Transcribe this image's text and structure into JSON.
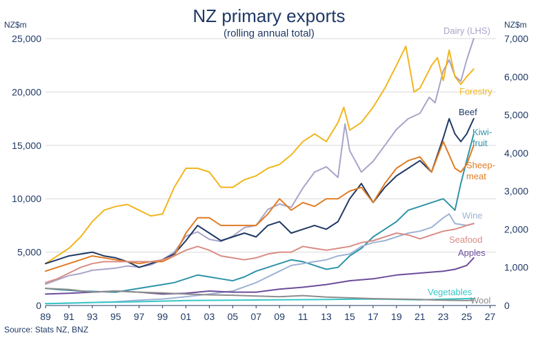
{
  "chart_data": {
    "type": "line",
    "title": "NZ primary exports",
    "subtitle": "(rolling annual total)",
    "y_left_unit": "NZ$m",
    "y_right_unit": "NZ$m",
    "source": "Source: Stats NZ, BNZ",
    "xlim": [
      1989,
      2027.5
    ],
    "ylim_left": [
      0,
      25000
    ],
    "ylim_right": [
      0,
      7000
    ],
    "grid": true,
    "x_ticks": [
      "89",
      "91",
      "93",
      "95",
      "97",
      "99",
      "01",
      "03",
      "05",
      "07",
      "09",
      "11",
      "13",
      "15",
      "17",
      "19",
      "21",
      "23",
      "25",
      "27"
    ],
    "y_left_ticks": [
      "0",
      "5,000",
      "10,000",
      "15,000",
      "20,000",
      "25,000"
    ],
    "y_right_ticks": [
      "0",
      "1,000",
      "2,000",
      "3,000",
      "4,000",
      "5,000",
      "6,000",
      "7,000"
    ],
    "series": [
      {
        "name": "Dairy (LHS)",
        "label": "Dairy (LHS)",
        "axis": "left",
        "color": "#a9a3c9",
        "x": [
          1989,
          1990,
          1991,
          1992,
          1993,
          1994,
          1995,
          1996,
          1997,
          1998,
          1999,
          2000,
          2001,
          2002,
          2003,
          2004,
          2005,
          2006,
          2007,
          2008,
          2009,
          2010,
          2011,
          2012,
          2013,
          2014,
          2014.6,
          2015,
          2016,
          2017,
          2018,
          2019,
          2020,
          2021,
          2021.8,
          2022.3,
          2023,
          2023.5,
          2024,
          2024.5,
          2025,
          2025.6
        ],
        "y": [
          2000,
          2400,
          2800,
          3000,
          3300,
          3400,
          3500,
          3700,
          3600,
          3800,
          4300,
          5000,
          6500,
          6900,
          6200,
          6000,
          6500,
          7300,
          7500,
          9000,
          9500,
          9200,
          11000,
          12500,
          13000,
          12000,
          17000,
          14500,
          12500,
          13500,
          15000,
          16500,
          17500,
          18000,
          19500,
          19000,
          22000,
          23000,
          21500,
          21000,
          23000,
          25000
        ]
      },
      {
        "name": "Forestry",
        "label": "Forestry",
        "axis": "right",
        "color": "#f2b51c",
        "x": [
          1989,
          1990,
          1991,
          1992,
          1993,
          1994,
          1995,
          1996,
          1997,
          1998,
          1999,
          2000,
          2001,
          2002,
          2003,
          2004,
          2005,
          2006,
          2007,
          2008,
          2009,
          2010,
          2011,
          2012,
          2013,
          2014,
          2014.5,
          2015,
          2016,
          2017,
          2018,
          2019,
          2019.8,
          2020.5,
          2021,
          2022,
          2022.5,
          2023,
          2023.5,
          2024,
          2024.5,
          2025,
          2025.6
        ],
        "y": [
          1100,
          1300,
          1500,
          1800,
          2200,
          2500,
          2600,
          2650,
          2500,
          2350,
          2400,
          3100,
          3600,
          3600,
          3500,
          3100,
          3100,
          3300,
          3400,
          3600,
          3700,
          3950,
          4300,
          4500,
          4300,
          4800,
          5200,
          4600,
          4800,
          5200,
          5700,
          6300,
          6800,
          5600,
          5700,
          6300,
          6500,
          5900,
          6700,
          6000,
          5800,
          6000,
          6200
        ]
      },
      {
        "name": "Beef",
        "label": "Beef",
        "axis": "right",
        "color": "#1f3864",
        "x": [
          1989,
          1990,
          1991,
          1992,
          1993,
          1994,
          1995,
          1996,
          1997,
          1998,
          1999,
          2000,
          2001,
          2002,
          2003,
          2004,
          2005,
          2006,
          2007,
          2008,
          2009,
          2010,
          2011,
          2012,
          2013,
          2014,
          2015,
          2016,
          2017,
          2018,
          2019,
          2020,
          2021,
          2022,
          2023,
          2023.5,
          2024,
          2024.5,
          2025,
          2025.6
        ],
        "y": [
          1100,
          1200,
          1300,
          1350,
          1400,
          1300,
          1250,
          1150,
          1000,
          1100,
          1200,
          1350,
          1700,
          2100,
          1900,
          1700,
          1800,
          1900,
          1800,
          2100,
          2200,
          1900,
          2000,
          2100,
          2000,
          2200,
          2800,
          3200,
          2700,
          3100,
          3400,
          3600,
          3800,
          3500,
          4400,
          4900,
          4500,
          4300,
          4500,
          4900
        ]
      },
      {
        "name": "Kiwifruit",
        "label": "Kiwi-fruit",
        "axis": "right",
        "color": "#2e93a8",
        "x": [
          1989,
          1990,
          1991,
          1992,
          1993,
          1994,
          1995,
          1996,
          1997,
          1998,
          1999,
          2000,
          2001,
          2002,
          2003,
          2004,
          2005,
          2006,
          2007,
          2008,
          2009,
          2010,
          2011,
          2012,
          2013,
          2014,
          2015,
          2016,
          2017,
          2018,
          2019,
          2020,
          2021,
          2022,
          2023,
          2024,
          2024.5,
          2025,
          2025.6
        ],
        "y": [
          450,
          420,
          400,
          380,
          370,
          360,
          350,
          400,
          450,
          500,
          550,
          600,
          700,
          800,
          750,
          700,
          650,
          750,
          900,
          1000,
          1100,
          1200,
          1150,
          1050,
          950,
          1000,
          1300,
          1500,
          1800,
          2000,
          2200,
          2500,
          2600,
          2700,
          2800,
          2500,
          3200,
          3800,
          4500
        ]
      },
      {
        "name": "Sheepmeat",
        "label": "Sheep-meat",
        "axis": "right",
        "color": "#e07b22",
        "x": [
          1989,
          1990,
          1991,
          1992,
          1993,
          1994,
          1995,
          1996,
          1997,
          1998,
          1999,
          2000,
          2001,
          2002,
          2003,
          2004,
          2005,
          2006,
          2007,
          2008,
          2009,
          2010,
          2011,
          2012,
          2013,
          2014,
          2015,
          2016,
          2017,
          2018,
          2019,
          2020,
          2021,
          2022,
          2023,
          2024,
          2024.5,
          2025,
          2025.6
        ],
        "y": [
          900,
          1000,
          1100,
          1200,
          1300,
          1250,
          1200,
          1150,
          1100,
          1150,
          1150,
          1300,
          1900,
          2300,
          2300,
          2100,
          2100,
          2100,
          2100,
          2400,
          2800,
          2500,
          2700,
          2600,
          2800,
          2800,
          3000,
          3100,
          2700,
          3200,
          3600,
          3800,
          3900,
          3500,
          4300,
          3600,
          3500,
          3700,
          4200
        ]
      },
      {
        "name": "Wine",
        "label": "Wine",
        "axis": "right",
        "color": "#9db3d4",
        "x": [
          1989,
          1991,
          1993,
          1995,
          1997,
          1999,
          2001,
          2003,
          2005,
          2007,
          2009,
          2010,
          2011,
          2012,
          2013,
          2014,
          2015,
          2016,
          2017,
          2018,
          2019,
          2020,
          2021,
          2022,
          2023,
          2023.5,
          2024,
          2025,
          2025.6
        ],
        "y": [
          50,
          60,
          80,
          100,
          140,
          170,
          230,
          300,
          380,
          600,
          900,
          1050,
          1100,
          1150,
          1200,
          1300,
          1350,
          1550,
          1650,
          1700,
          1800,
          1900,
          1950,
          2050,
          2300,
          2400,
          2150,
          2100,
          2150
        ]
      },
      {
        "name": "Seafood",
        "label": "Seafood",
        "axis": "right",
        "color": "#d98c84",
        "x": [
          1989,
          1990,
          1991,
          1992,
          1993,
          1994,
          1995,
          1996,
          1997,
          1998,
          1999,
          2000,
          2001,
          2002,
          2003,
          2004,
          2005,
          2006,
          2007,
          2008,
          2009,
          2010,
          2011,
          2012,
          2013,
          2014,
          2015,
          2016,
          2017,
          2018,
          2019,
          2020,
          2021,
          2022,
          2023,
          2024,
          2025,
          2025.6
        ],
        "y": [
          600,
          700,
          850,
          1000,
          1100,
          1150,
          1150,
          1150,
          1150,
          1150,
          1200,
          1300,
          1450,
          1550,
          1450,
          1300,
          1250,
          1200,
          1250,
          1350,
          1400,
          1400,
          1550,
          1500,
          1450,
          1500,
          1550,
          1650,
          1700,
          1800,
          1900,
          1850,
          1750,
          1850,
          1950,
          2000,
          2100,
          2150
        ]
      },
      {
        "name": "Apples",
        "label": "Apples",
        "axis": "right",
        "color": "#6b4c9a",
        "x": [
          1989,
          1991,
          1993,
          1995,
          1997,
          1999,
          2001,
          2003,
          2005,
          2007,
          2009,
          2011,
          2013,
          2015,
          2017,
          2019,
          2021,
          2023,
          2024,
          2025,
          2025.6
        ],
        "y": [
          300,
          320,
          350,
          380,
          350,
          300,
          320,
          380,
          350,
          350,
          430,
          480,
          550,
          650,
          700,
          800,
          850,
          900,
          950,
          1050,
          1250
        ]
      },
      {
        "name": "Vegetables",
        "label": "Vegetables",
        "axis": "right",
        "color": "#38c7c7",
        "x": [
          1989,
          1993,
          1997,
          2001,
          2005,
          2009,
          2013,
          2017,
          2021,
          2025,
          2025.6
        ],
        "y": [
          50,
          80,
          100,
          130,
          140,
          150,
          160,
          170,
          150,
          180,
          180
        ]
      },
      {
        "name": "Wool",
        "label": "Wool",
        "axis": "right",
        "color": "#8c8c8c",
        "x": [
          1989,
          1991,
          1993,
          1995,
          1997,
          1999,
          2001,
          2003,
          2005,
          2007,
          2009,
          2011,
          2013,
          2015,
          2017,
          2019,
          2021,
          2023,
          2025,
          2025.6
        ],
        "y": [
          450,
          420,
          350,
          380,
          350,
          330,
          300,
          280,
          270,
          250,
          230,
          260,
          220,
          200,
          180,
          170,
          160,
          140,
          130,
          140
        ]
      }
    ]
  }
}
